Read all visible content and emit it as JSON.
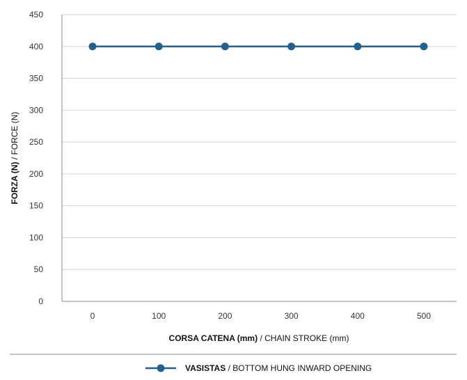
{
  "chart_data": {
    "type": "line",
    "x": [
      0,
      100,
      200,
      300,
      400,
      500
    ],
    "series": [
      {
        "name_bold": "VASISTAS",
        "name_rest": " / BOTTOM HUNG INWARD OPENING",
        "values": [
          400,
          400,
          400,
          400,
          400,
          400
        ]
      }
    ],
    "xlabel_bold": "CORSA CATENA (mm)",
    "xlabel_rest": " / CHAIN STROKE (mm)",
    "ylabel_bold": "FORZA (N)",
    "ylabel_rest": " /  FORCE (N)",
    "ylim": [
      0,
      450
    ],
    "yticks": [
      0,
      50,
      100,
      150,
      200,
      250,
      300,
      350,
      400,
      450
    ],
    "grid": true,
    "legend_position": "bottom",
    "colors": {
      "series": "#23618e",
      "grid": "#d4d4d4",
      "axis": "#8a8a8a"
    }
  }
}
